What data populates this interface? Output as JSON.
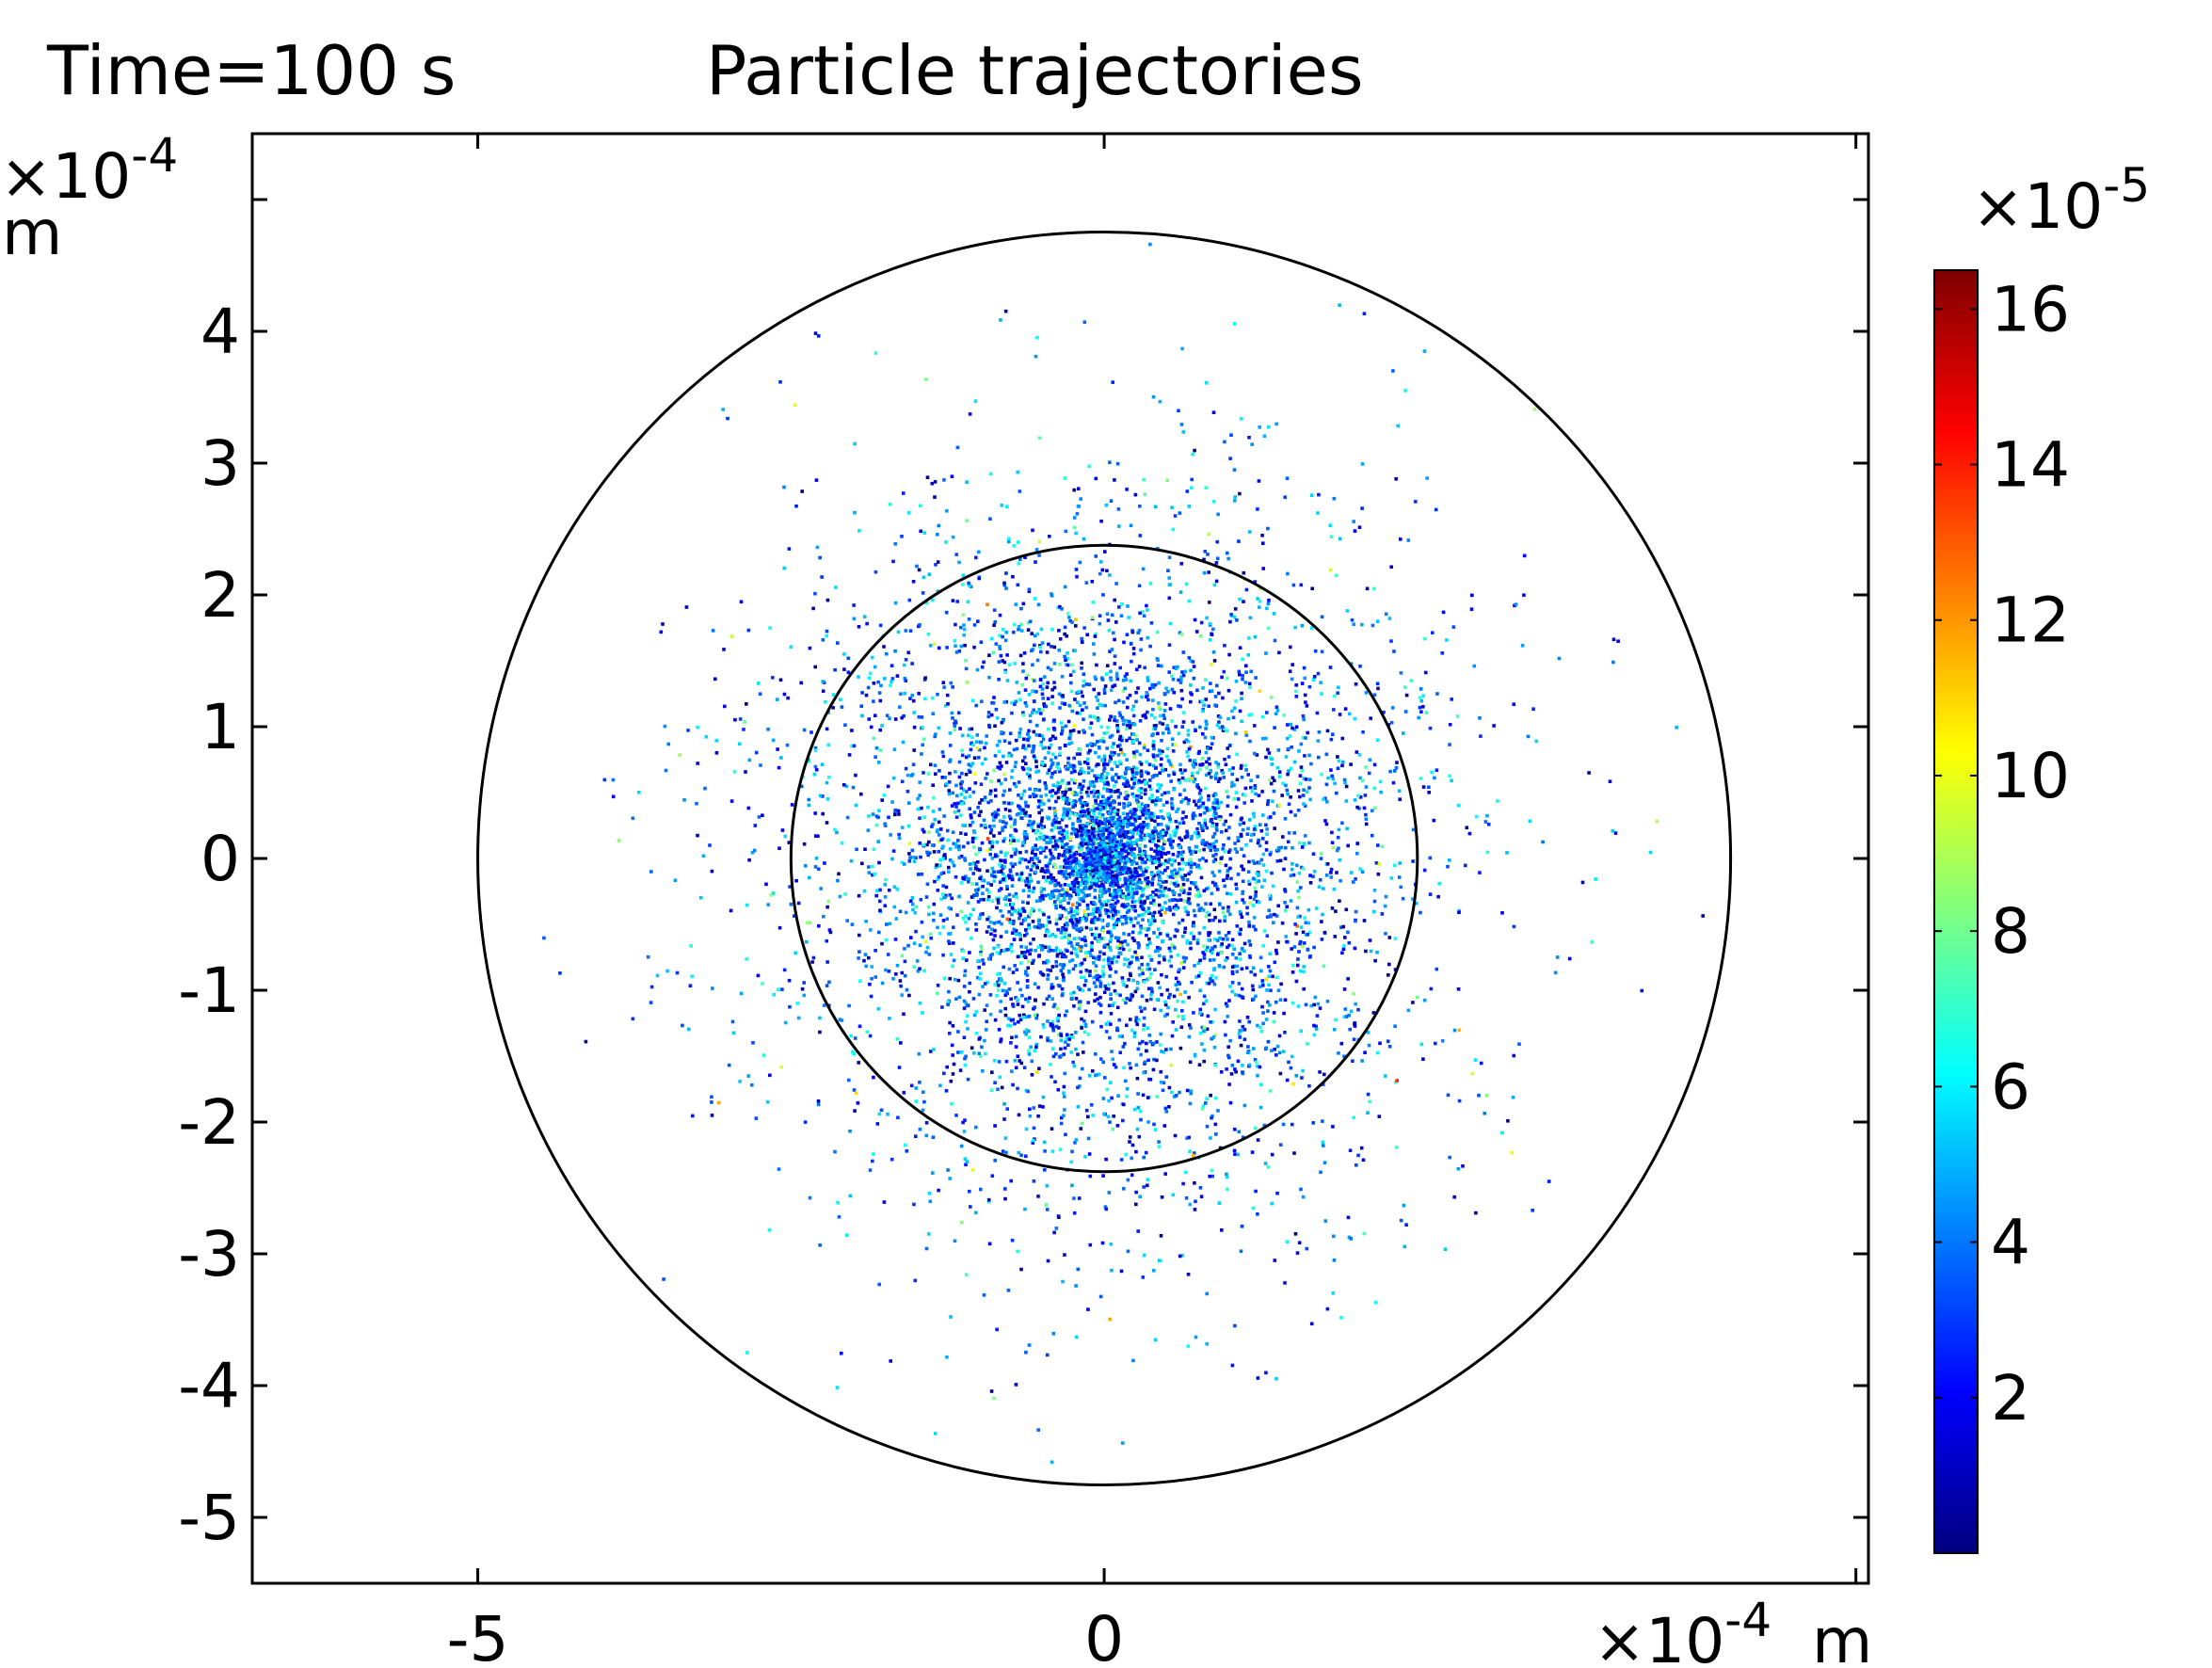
{
  "chart_data": {
    "type": "scatter",
    "header_left": "Time=100 s",
    "title": "Particle trajectories",
    "xaxis": {
      "ticks": [
        -5,
        0
      ],
      "tick_labels": [
        "-5",
        "0"
      ],
      "range": [
        -6.8,
        6.1
      ],
      "multiplier_base": "×10",
      "multiplier_exp": "-4",
      "unit": "m"
    },
    "yaxis": {
      "ticks": [
        4,
        3,
        2,
        1,
        0,
        -1,
        -2,
        -3,
        -4,
        -5
      ],
      "tick_labels": [
        "4",
        "3",
        "2",
        "1",
        "0",
        "-1",
        "-2",
        "-3",
        "-4",
        "-5"
      ],
      "range": [
        -5.5,
        5.5
      ],
      "multiplier_base": "×10",
      "multiplier_exp": "-4",
      "unit": "m"
    },
    "circles": [
      {
        "name": "outer",
        "cx": 0,
        "cy": 0,
        "r": 5.0
      },
      {
        "name": "inner",
        "cx": 0,
        "cy": 0,
        "r": 2.5
      }
    ],
    "particles": {
      "approx_count": 7000,
      "radial_spread_sigma": 1.55,
      "max_radius": 5.0,
      "color_values_range": [
        0,
        16.5
      ],
      "typical_color_value": 3.5
    },
    "colorbar": {
      "colormap": "jet",
      "range": [
        0,
        16.5
      ],
      "ticks": [
        2,
        4,
        6,
        8,
        10,
        12,
        14,
        16
      ],
      "tick_labels": [
        "2",
        "4",
        "6",
        "8",
        "10",
        "12",
        "14",
        "16"
      ],
      "multiplier_base": "×10",
      "multiplier_exp": "-5",
      "colors": [
        "#00007f",
        "#0000ff",
        "#007fff",
        "#00ffff",
        "#7fff7f",
        "#ffff00",
        "#ff7f00",
        "#ff0000",
        "#7f0000"
      ]
    },
    "grid": false,
    "legend": "none"
  }
}
